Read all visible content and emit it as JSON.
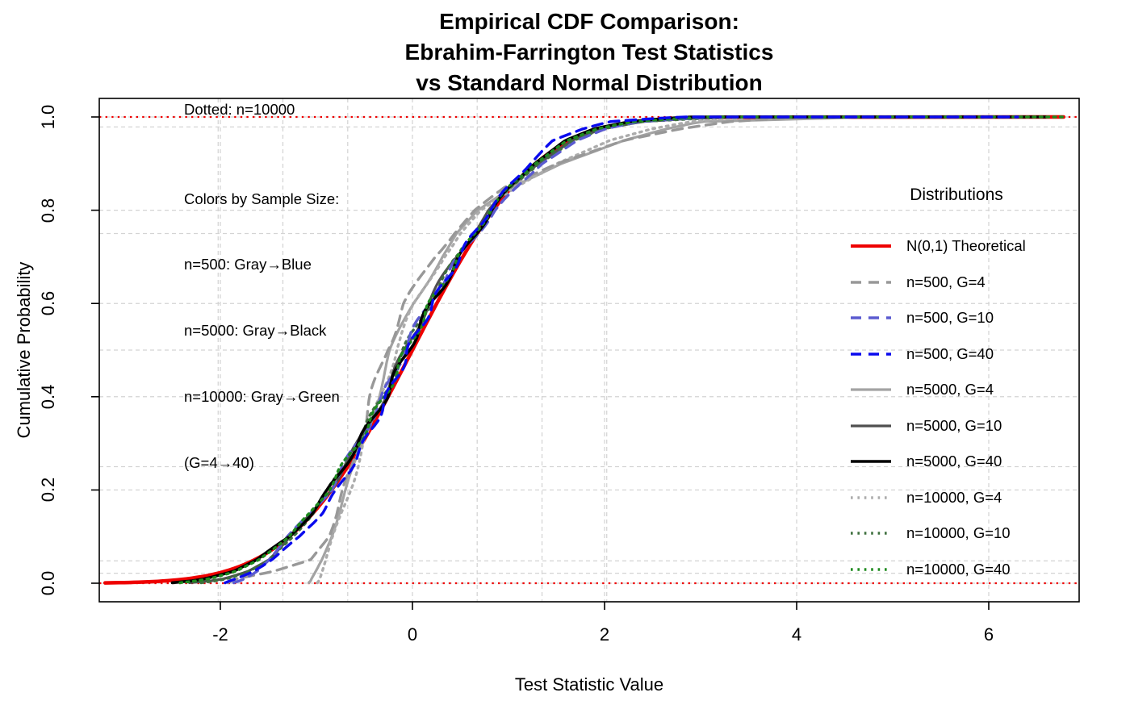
{
  "title": {
    "lines": [
      "Empirical CDF Comparison:",
      "Ebrahim-Farrington Test Statistics",
      "vs Standard Normal Distribution"
    ]
  },
  "annotations": {
    "dotted_note": "Dotted: n=10000",
    "color_note": [
      "Colors by Sample Size:",
      "n=500: Gray→Blue",
      "n=5000: Gray→Black",
      "n=10000: Gray→Green",
      "(G=4→40)"
    ]
  },
  "axes": {
    "x_label": "Test Statistic Value",
    "y_label": "Cumulative Probability",
    "x_ticks": [
      {
        "v": -2,
        "label": "-2"
      },
      {
        "v": 0,
        "label": "0"
      },
      {
        "v": 2,
        "label": "2"
      },
      {
        "v": 4,
        "label": "4"
      },
      {
        "v": 6,
        "label": "6"
      }
    ],
    "y_ticks": [
      {
        "v": 0.0,
        "label": "0.0"
      },
      {
        "v": 0.2,
        "label": "0.2"
      },
      {
        "v": 0.4,
        "label": "0.4"
      },
      {
        "v": 0.6,
        "label": "0.6"
      },
      {
        "v": 0.8,
        "label": "0.8"
      },
      {
        "v": 1.0,
        "label": "1.0"
      }
    ]
  },
  "grid": {
    "color": "#d4d4d4",
    "x_major": [
      -2,
      0,
      2,
      4,
      6
    ],
    "y_major": [
      0,
      0.2,
      0.4,
      0.6,
      0.8,
      1.0
    ],
    "x_ref": [
      -2.023,
      -1.349,
      -0.674,
      0.674,
      1.349,
      2.023
    ],
    "y_ref": [
      0.0215,
      0.048,
      0.25,
      0.5,
      0.75,
      0.9785
    ]
  },
  "reference_lines": {
    "color": "#ee0000",
    "style": "dotted",
    "y_values": [
      0,
      1
    ]
  },
  "legend": {
    "title": "Distributions",
    "entries": [
      {
        "label": "N(0,1) Theoretical",
        "color": "#ee0000",
        "style": "solid",
        "width": 4
      },
      {
        "label": "n=500, G=4",
        "color": "#989898",
        "style": "dashed",
        "width": 3.4
      },
      {
        "label": "n=500, G=10",
        "color": "#5b5bd0",
        "style": "dashed",
        "width": 3.4
      },
      {
        "label": "n=500, G=40",
        "color": "#0a0aee",
        "style": "dashed",
        "width": 3.4
      },
      {
        "label": "n=5000, G=4",
        "color": "#a3a3a3",
        "style": "solid",
        "width": 3.2
      },
      {
        "label": "n=5000, G=10",
        "color": "#4f4f4f",
        "style": "solid",
        "width": 3.2
      },
      {
        "label": "n=5000, G=40",
        "color": "#000000",
        "style": "solid",
        "width": 3.6
      },
      {
        "label": "n=10000, G=4",
        "color": "#acacac",
        "style": "dotted",
        "width": 3.4
      },
      {
        "label": "n=10000, G=10",
        "color": "#3f703f",
        "style": "dotted",
        "width": 3.4
      },
      {
        "label": "n=10000, G=40",
        "color": "#1e8b1e",
        "style": "dotted",
        "width": 3.4
      }
    ]
  },
  "chart_data": {
    "type": "line",
    "subtype": "empirical-cdf-comparison",
    "title": "Empirical CDF Comparison: Ebrahim-Farrington Test Statistics vs Standard Normal Distribution",
    "xlabel": "Test Statistic Value",
    "ylabel": "Cumulative Probability",
    "xlim": [
      -3.26,
      6.94
    ],
    "ylim": [
      0,
      1
    ],
    "grid": true,
    "legend_position": "right",
    "theoretical": {
      "name": "N(0,1) Theoretical",
      "color": "#ee0000",
      "style": "solid",
      "width": 4.5,
      "distribution": "standard_normal",
      "x_start": -3.2,
      "x_end": 6.78
    },
    "quantile_p": [
      0.001,
      0.005,
      0.01,
      0.025,
      0.05,
      0.1,
      0.15,
      0.2,
      0.25,
      0.3,
      0.4,
      0.5,
      0.6,
      0.7,
      0.75,
      0.8,
      0.85,
      0.9,
      0.95,
      0.975,
      0.99,
      0.998,
      1.0
    ],
    "series": [
      {
        "name": "n=5000, G=4",
        "color": "#a3a3a3",
        "style": "solid",
        "width": 3.2,
        "end_x": 4.95,
        "x": [
          -1.08,
          -1.06,
          -1.05,
          -1.01,
          -0.95,
          -0.85,
          -0.76,
          -0.68,
          -0.6,
          -0.52,
          -0.37,
          -0.21,
          0.01,
          0.29,
          0.46,
          0.7,
          1.06,
          1.55,
          2.2,
          2.65,
          3.0,
          4.5,
          4.6
        ]
      },
      {
        "name": "n=10000, G=4",
        "color": "#acacac",
        "style": "dotted",
        "width": 3.4,
        "end_x": 6.0,
        "x": [
          -0.99,
          -0.975,
          -0.965,
          -0.94,
          -0.9,
          -0.82,
          -0.74,
          -0.66,
          -0.58,
          -0.5,
          -0.34,
          -0.18,
          0.04,
          0.31,
          0.49,
          0.73,
          1.1,
          1.5,
          2.05,
          2.5,
          2.9,
          3.4,
          3.5
        ]
      },
      {
        "name": "n=500, G=4",
        "color": "#989898",
        "style": "dashed",
        "width": 3.4,
        "end_x": 5.5,
        "x": [
          -1.92,
          -1.88,
          -1.82,
          -1.45,
          -1.06,
          -0.88,
          -0.79,
          -0.71,
          -0.63,
          -0.56,
          -0.42,
          -0.28,
          -0.07,
          0.22,
          0.42,
          0.66,
          0.98,
          1.5,
          2.2,
          2.8,
          3.3,
          3.9,
          4.0
        ]
      },
      {
        "name": "n=5000, G=10",
        "color": "#4f4f4f",
        "style": "solid",
        "width": 3.2,
        "end_x": 5.8,
        "x": [
          -2.32,
          -2.1,
          -1.95,
          -1.72,
          -1.5,
          -1.26,
          -1.05,
          -0.86,
          -0.71,
          -0.56,
          -0.3,
          -0.07,
          0.16,
          0.46,
          0.62,
          0.8,
          1.03,
          1.3,
          1.66,
          1.98,
          2.4,
          3.0,
          3.2
        ]
      },
      {
        "name": "n=10000, G=10",
        "color": "#3f703f",
        "style": "dotted",
        "width": 3.4,
        "end_x": 6.4,
        "x": [
          -2.2,
          -2.05,
          -1.92,
          -1.7,
          -1.49,
          -1.25,
          -1.04,
          -0.87,
          -0.72,
          -0.57,
          -0.31,
          -0.08,
          0.17,
          0.47,
          0.63,
          0.81,
          1.04,
          1.31,
          1.68,
          2.0,
          2.38,
          3.1,
          3.3
        ]
      },
      {
        "name": "n=500, G=10",
        "color": "#5b5bd0",
        "style": "dashed",
        "width": 3.4,
        "end_x": 5.0,
        "x": [
          -1.86,
          -1.8,
          -1.74,
          -1.62,
          -1.5,
          -1.3,
          -1.05,
          -0.86,
          -0.72,
          -0.57,
          -0.3,
          -0.09,
          0.17,
          0.49,
          0.67,
          0.86,
          1.1,
          1.34,
          1.72,
          2.02,
          2.36,
          2.95,
          3.15
        ]
      },
      {
        "name": "n=5000, G=40",
        "color": "#000000",
        "style": "solid",
        "width": 3.6,
        "end_x": 6.6,
        "x": [
          -2.5,
          -2.3,
          -2.15,
          -1.87,
          -1.62,
          -1.28,
          -1.05,
          -0.87,
          -0.72,
          -0.56,
          -0.28,
          -0.05,
          0.2,
          0.5,
          0.66,
          0.82,
          1.02,
          1.26,
          1.6,
          1.9,
          2.26,
          2.7,
          2.9
        ]
      },
      {
        "name": "n=10000, G=40",
        "color": "#1e8b1e",
        "style": "dotted",
        "width": 3.4,
        "end_x": 6.8,
        "x": [
          -2.42,
          -2.25,
          -2.1,
          -1.84,
          -1.6,
          -1.29,
          -1.06,
          -0.88,
          -0.73,
          -0.57,
          -0.29,
          -0.06,
          0.19,
          0.48,
          0.65,
          0.81,
          1.01,
          1.27,
          1.62,
          1.93,
          2.3,
          2.85,
          3.05
        ]
      },
      {
        "name": "n=500, G=40",
        "color": "#0a0aee",
        "style": "dashed",
        "width": 3.4,
        "end_x": 6.3,
        "x": [
          -1.95,
          -1.9,
          -1.83,
          -1.66,
          -1.47,
          -1.17,
          -0.95,
          -0.78,
          -0.64,
          -0.5,
          -0.26,
          -0.04,
          0.21,
          0.49,
          0.64,
          0.8,
          1.0,
          1.22,
          1.47,
          1.78,
          2.05,
          2.6,
          2.85
        ]
      }
    ]
  }
}
